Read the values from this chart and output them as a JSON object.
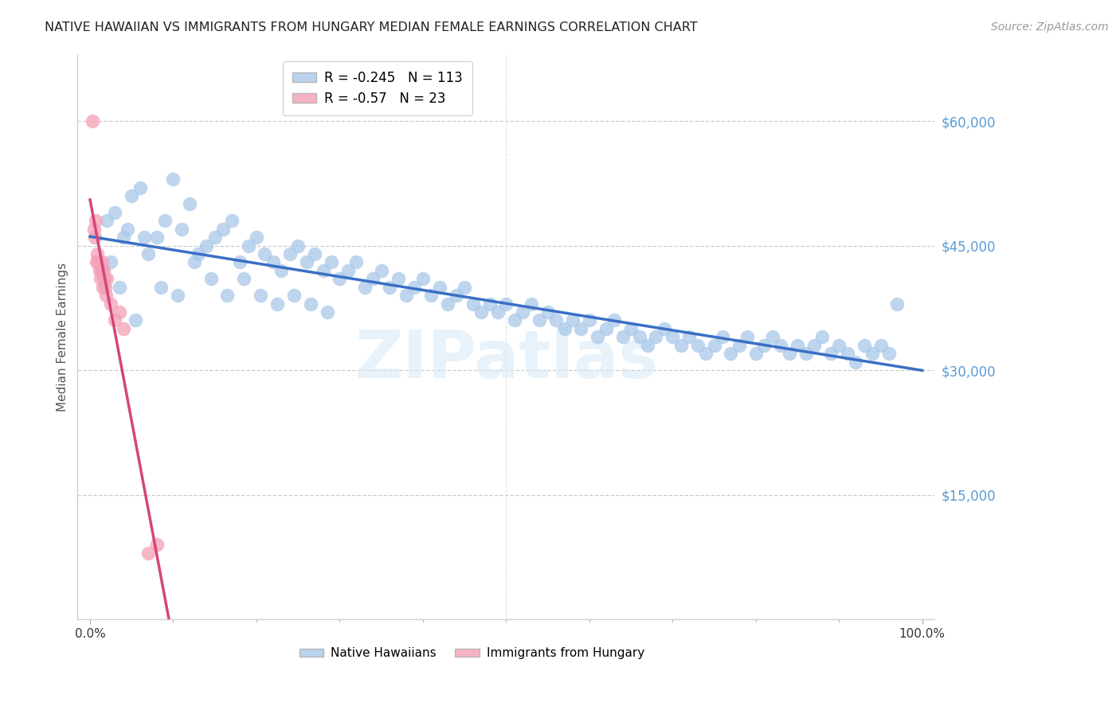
{
  "title": "NATIVE HAWAIIAN VS IMMIGRANTS FROM HUNGARY MEDIAN FEMALE EARNINGS CORRELATION CHART",
  "source": "Source: ZipAtlas.com",
  "ylabel": "Median Female Earnings",
  "blue_R": -0.245,
  "blue_N": 113,
  "pink_R": -0.57,
  "pink_N": 23,
  "blue_color": "#a8c8e8",
  "blue_line_color": "#3a6fc4",
  "pink_color": "#f4a0b5",
  "pink_line_color": "#d4457a",
  "pink_dash_color": "#e8a0b8",
  "watermark_color": "#d8eaf8",
  "ylim_max": 68000,
  "blue_scatter_x": [
    2.0,
    3.0,
    4.5,
    5.0,
    6.0,
    7.0,
    8.0,
    9.0,
    10.0,
    11.0,
    12.0,
    13.0,
    14.0,
    15.0,
    16.0,
    17.0,
    18.0,
    19.0,
    20.0,
    21.0,
    22.0,
    23.0,
    24.0,
    25.0,
    26.0,
    27.0,
    28.0,
    29.0,
    30.0,
    31.0,
    32.0,
    33.0,
    34.0,
    35.0,
    36.0,
    37.0,
    38.0,
    39.0,
    40.0,
    41.0,
    42.0,
    43.0,
    44.0,
    45.0,
    46.0,
    47.0,
    48.0,
    49.0,
    50.0,
    51.0,
    52.0,
    53.0,
    54.0,
    55.0,
    56.0,
    57.0,
    58.0,
    59.0,
    60.0,
    61.0,
    62.0,
    63.0,
    64.0,
    65.0,
    66.0,
    67.0,
    68.0,
    69.0,
    70.0,
    71.0,
    72.0,
    73.0,
    74.0,
    75.0,
    76.0,
    77.0,
    78.0,
    79.0,
    80.0,
    81.0,
    82.0,
    83.0,
    84.0,
    85.0,
    86.0,
    87.0,
    88.0,
    89.0,
    90.0,
    91.0,
    92.0,
    93.0,
    94.0,
    95.0,
    96.0,
    97.0,
    1.5,
    2.5,
    3.5,
    4.0,
    5.5,
    6.5,
    8.5,
    10.5,
    12.5,
    14.5,
    16.5,
    18.5,
    20.5,
    22.5,
    24.5,
    26.5,
    28.5
  ],
  "blue_scatter_y": [
    48000,
    49000,
    47000,
    51000,
    52000,
    44000,
    46000,
    48000,
    53000,
    47000,
    50000,
    44000,
    45000,
    46000,
    47000,
    48000,
    43000,
    45000,
    46000,
    44000,
    43000,
    42000,
    44000,
    45000,
    43000,
    44000,
    42000,
    43000,
    41000,
    42000,
    43000,
    40000,
    41000,
    42000,
    40000,
    41000,
    39000,
    40000,
    41000,
    39000,
    40000,
    38000,
    39000,
    40000,
    38000,
    37000,
    38000,
    37000,
    38000,
    36000,
    37000,
    38000,
    36000,
    37000,
    36000,
    35000,
    36000,
    35000,
    36000,
    34000,
    35000,
    36000,
    34000,
    35000,
    34000,
    33000,
    34000,
    35000,
    34000,
    33000,
    34000,
    33000,
    32000,
    33000,
    34000,
    32000,
    33000,
    34000,
    32000,
    33000,
    34000,
    33000,
    32000,
    33000,
    32000,
    33000,
    34000,
    32000,
    33000,
    32000,
    31000,
    33000,
    32000,
    33000,
    32000,
    38000,
    42000,
    43000,
    40000,
    46000,
    36000,
    46000,
    40000,
    39000,
    43000,
    41000,
    39000,
    41000,
    39000,
    38000,
    39000,
    38000,
    37000
  ],
  "pink_scatter_x": [
    0.25,
    0.5,
    0.6,
    0.7,
    0.8,
    0.9,
    1.0,
    1.1,
    1.2,
    1.3,
    1.4,
    1.5,
    1.6,
    1.7,
    1.8,
    1.9,
    2.0,
    2.5,
    3.0,
    3.5,
    4.0,
    7.0,
    8.0
  ],
  "pink_scatter_y": [
    60000,
    47000,
    46000,
    48000,
    43000,
    44000,
    43000,
    42000,
    41000,
    42000,
    43000,
    40000,
    42000,
    41000,
    40000,
    39000,
    41000,
    38000,
    36000,
    37000,
    35000,
    8000,
    9000
  ]
}
